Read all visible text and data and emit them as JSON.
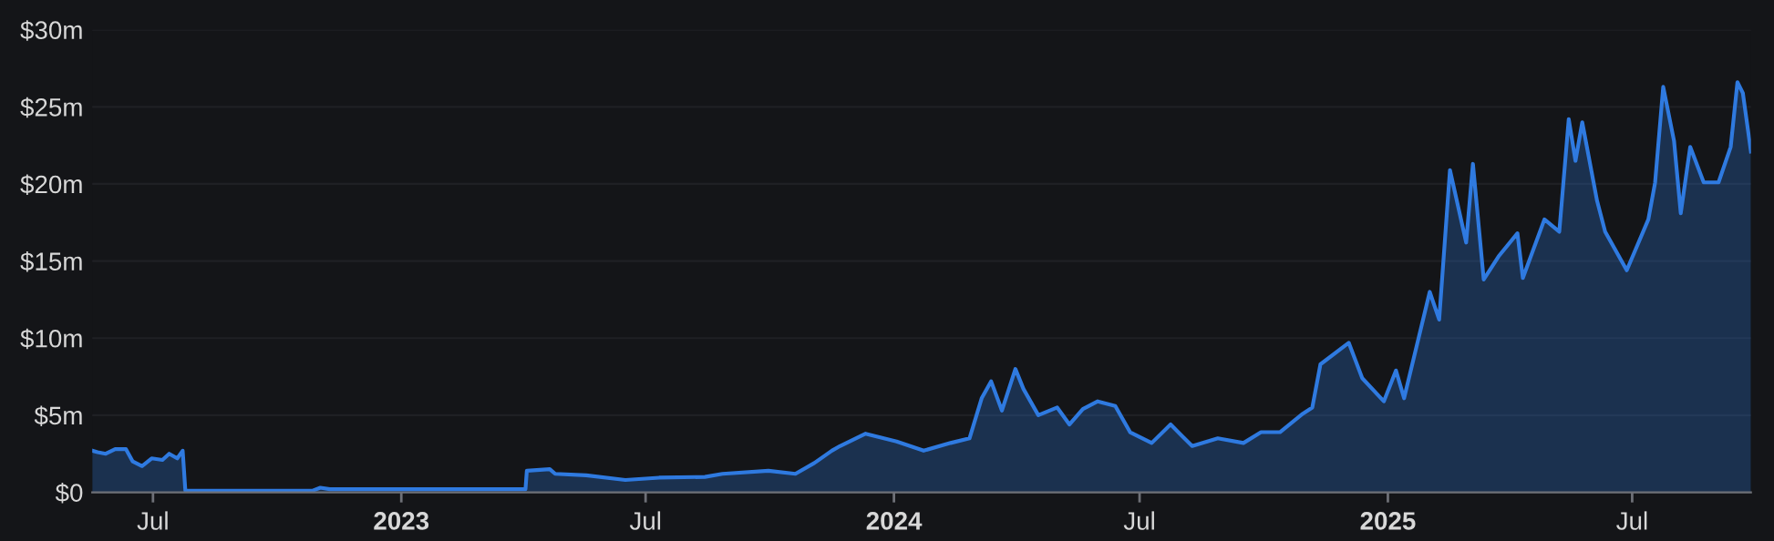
{
  "chart_data": {
    "type": "area",
    "x": [
      "2022-05-17",
      "2022-05-21",
      "2022-05-27",
      "2022-06-03",
      "2022-06-11",
      "2022-06-16",
      "2022-06-23",
      "2022-06-30",
      "2022-07-08",
      "2022-07-13",
      "2022-07-19",
      "2022-07-23",
      "2022-07-25",
      "2022-10-27",
      "2022-11-02",
      "2022-11-09",
      "2023-04-03",
      "2023-04-04",
      "2023-04-21",
      "2023-04-25",
      "2023-05-18",
      "2023-06-16",
      "2023-07-11",
      "2023-08-14",
      "2023-08-27",
      "2023-09-30",
      "2023-10-20",
      "2023-11-03",
      "2023-11-16",
      "2023-11-22",
      "2023-12-11",
      "2024-01-03",
      "2024-01-23",
      "2024-02-12",
      "2024-02-26",
      "2024-03-06",
      "2024-03-13",
      "2024-03-21",
      "2024-03-31",
      "2024-04-06",
      "2024-04-17",
      "2024-05-01",
      "2024-05-10",
      "2024-05-20",
      "2024-05-31",
      "2024-06-13",
      "2024-06-24",
      "2024-07-10",
      "2024-07-24",
      "2024-08-01",
      "2024-08-09",
      "2024-08-28",
      "2024-09-16",
      "2024-09-29",
      "2024-10-13",
      "2024-10-30",
      "2024-11-06",
      "2024-11-12",
      "2024-12-03",
      "2024-12-13",
      "2024-12-29",
      "2025-01-07",
      "2025-01-13",
      "2025-02-01",
      "2025-02-08",
      "2025-02-16",
      "2025-02-28",
      "2025-03-05",
      "2025-03-13",
      "2025-03-24",
      "2025-04-07",
      "2025-04-11",
      "2025-04-27",
      "2025-05-08",
      "2025-05-15",
      "2025-05-20",
      "2025-05-25",
      "2025-06-05",
      "2025-06-11",
      "2025-06-27",
      "2025-07-13",
      "2025-07-18",
      "2025-07-24",
      "2025-08-01",
      "2025-08-06",
      "2025-08-13",
      "2025-08-23",
      "2025-09-03",
      "2025-09-12",
      "2025-09-17",
      "2025-09-21",
      "2025-09-27"
    ],
    "series": [
      {
        "color": "#2f7ae0",
        "values": [
          2.7,
          2.6,
          2.5,
          2.8,
          2.8,
          2.0,
          1.7,
          2.2,
          2.1,
          2.5,
          2.2,
          2.7,
          0.1,
          0.1,
          0.3,
          0.2,
          0.2,
          1.4,
          1.5,
          1.2,
          1.1,
          0.8,
          0.95,
          1.0,
          1.2,
          1.4,
          1.2,
          1.9,
          2.7,
          3.0,
          3.8,
          3.3,
          2.7,
          3.2,
          3.5,
          6.1,
          7.2,
          5.3,
          8.0,
          6.7,
          5.0,
          5.5,
          4.4,
          5.4,
          5.9,
          5.6,
          3.9,
          3.2,
          4.4,
          3.7,
          3.0,
          3.5,
          3.2,
          3.9,
          3.9,
          5.1,
          5.5,
          8.3,
          9.7,
          7.4,
          5.9,
          7.9,
          6.1,
          13.0,
          11.2,
          20.9,
          16.2,
          21.3,
          13.8,
          15.3,
          16.8,
          13.9,
          17.7,
          16.9,
          24.2,
          21.5,
          24.0,
          18.9,
          16.9,
          14.4,
          17.7,
          20.1,
          26.3,
          22.8,
          18.1,
          22.4,
          20.1,
          20.1,
          22.4,
          26.6,
          25.9,
          22.1
        ]
      }
    ],
    "xlim": [
      "2022-05-17",
      "2025-09-27"
    ],
    "xticks": [
      {
        "value": "2022-07-01",
        "label": "Jul"
      },
      {
        "value": "2023-01-01",
        "label": "2023"
      },
      {
        "value": "2023-07-01",
        "label": "Jul"
      },
      {
        "value": "2024-01-01",
        "label": "2024"
      },
      {
        "value": "2024-07-01",
        "label": "Jul"
      },
      {
        "value": "2025-01-01",
        "label": "2025"
      },
      {
        "value": "2025-07-01",
        "label": "Jul"
      }
    ],
    "ylim": [
      0,
      30
    ],
    "yticks": [
      {
        "value": 0,
        "label": "$0"
      },
      {
        "value": 5,
        "label": "$5m"
      },
      {
        "value": 10,
        "label": "$10m"
      },
      {
        "value": 15,
        "label": "$15m"
      },
      {
        "value": 20,
        "label": "$20m"
      },
      {
        "value": 25,
        "label": "$25m"
      },
      {
        "value": 30,
        "label": "$30m"
      }
    ],
    "grid": "y"
  }
}
